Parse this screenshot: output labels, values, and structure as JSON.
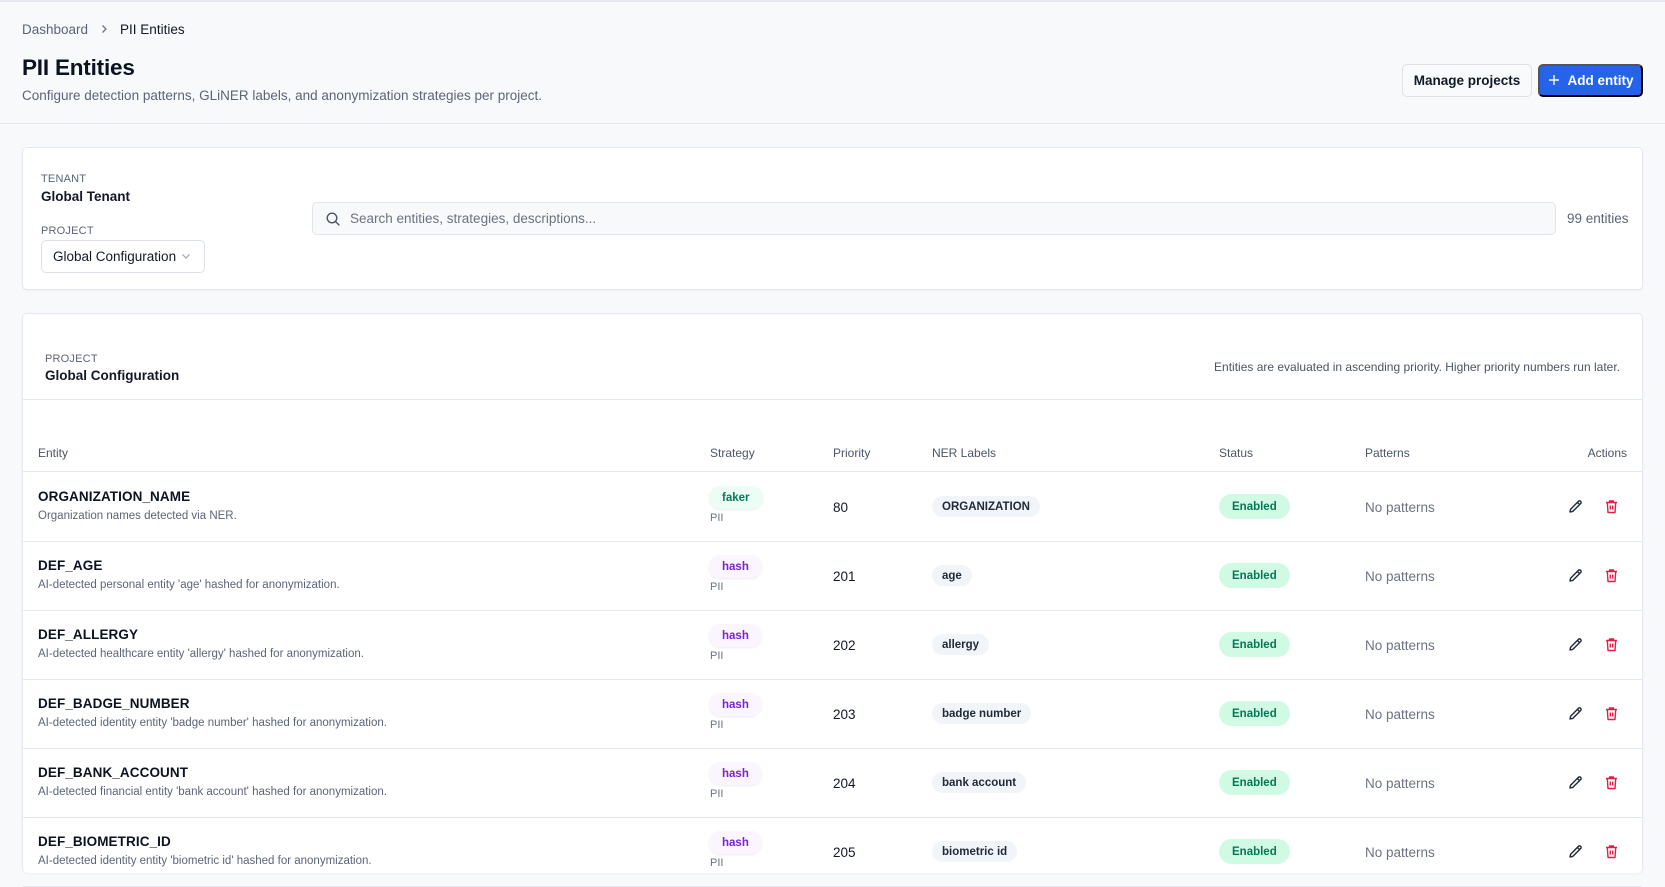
{
  "breadcrumb": {
    "items": [
      {
        "label": "Dashboard"
      },
      {
        "label": "PII Entities"
      }
    ],
    "separator_icon": "chevron-right-icon"
  },
  "header": {
    "title": "PII Entities",
    "subtitle": "Configure detection patterns, GLiNER labels, and anonymization strategies per project.",
    "manage_projects_label": "Manage projects",
    "add_entity_label": "Add entity",
    "add_entity_icon": "plus-icon"
  },
  "filters": {
    "tenant_label": "TENANT",
    "tenant_value": "Global Tenant",
    "project_label": "PROJECT",
    "project_value": "Global Configuration",
    "search_placeholder": "Search entities, strategies, descriptions...",
    "search_value": "",
    "entity_count": "99 entities"
  },
  "table_section": {
    "project_label": "PROJECT",
    "project_value": "Global Configuration",
    "note": "Entities are evaluated in ascending priority. Higher priority numbers run later.",
    "columns": {
      "entity": "Entity",
      "strategy": "Strategy",
      "priority": "Priority",
      "ner_labels": "NER Labels",
      "status": "Status",
      "patterns": "Patterns",
      "actions": "Actions"
    },
    "rows": [
      {
        "name": "ORGANIZATION_NAME",
        "description": "Organization names detected via NER.",
        "strategy": "faker",
        "strategy_type": "faker",
        "category": "PII",
        "priority": "80",
        "ner_label": "ORGANIZATION",
        "status": "Enabled",
        "patterns": "No patterns"
      },
      {
        "name": "DEF_AGE",
        "description": "AI-detected personal entity 'age' hashed for anonymization.",
        "strategy": "hash",
        "strategy_type": "hash",
        "category": "PII",
        "priority": "201",
        "ner_label": "age",
        "status": "Enabled",
        "patterns": "No patterns"
      },
      {
        "name": "DEF_ALLERGY",
        "description": "AI-detected healthcare entity 'allergy' hashed for anonymization.",
        "strategy": "hash",
        "strategy_type": "hash",
        "category": "PII",
        "priority": "202",
        "ner_label": "allergy",
        "status": "Enabled",
        "patterns": "No patterns"
      },
      {
        "name": "DEF_BADGE_NUMBER",
        "description": "AI-detected identity entity 'badge number' hashed for anonymization.",
        "strategy": "hash",
        "strategy_type": "hash",
        "category": "PII",
        "priority": "203",
        "ner_label": "badge number",
        "status": "Enabled",
        "patterns": "No patterns"
      },
      {
        "name": "DEF_BANK_ACCOUNT",
        "description": "AI-detected financial entity 'bank account' hashed for anonymization.",
        "strategy": "hash",
        "strategy_type": "hash",
        "category": "PII",
        "priority": "204",
        "ner_label": "bank account",
        "status": "Enabled",
        "patterns": "No patterns"
      },
      {
        "name": "DEF_BIOMETRIC_ID",
        "description": "AI-detected identity entity 'biometric id' hashed for anonymization.",
        "strategy": "hash",
        "strategy_type": "hash",
        "category": "PII",
        "priority": "205",
        "ner_label": "biometric id",
        "status": "Enabled",
        "patterns": "No patterns"
      }
    ]
  },
  "colors": {
    "primary": "#2563eb",
    "faker_text": "#047857",
    "faker_bg": "#ecfdf5",
    "hash_text": "#7e22ce",
    "hash_bg": "#faf5ff",
    "enabled_bg": "#d1fae5",
    "enabled_text": "#047857",
    "delete_icon": "#e11d48"
  }
}
